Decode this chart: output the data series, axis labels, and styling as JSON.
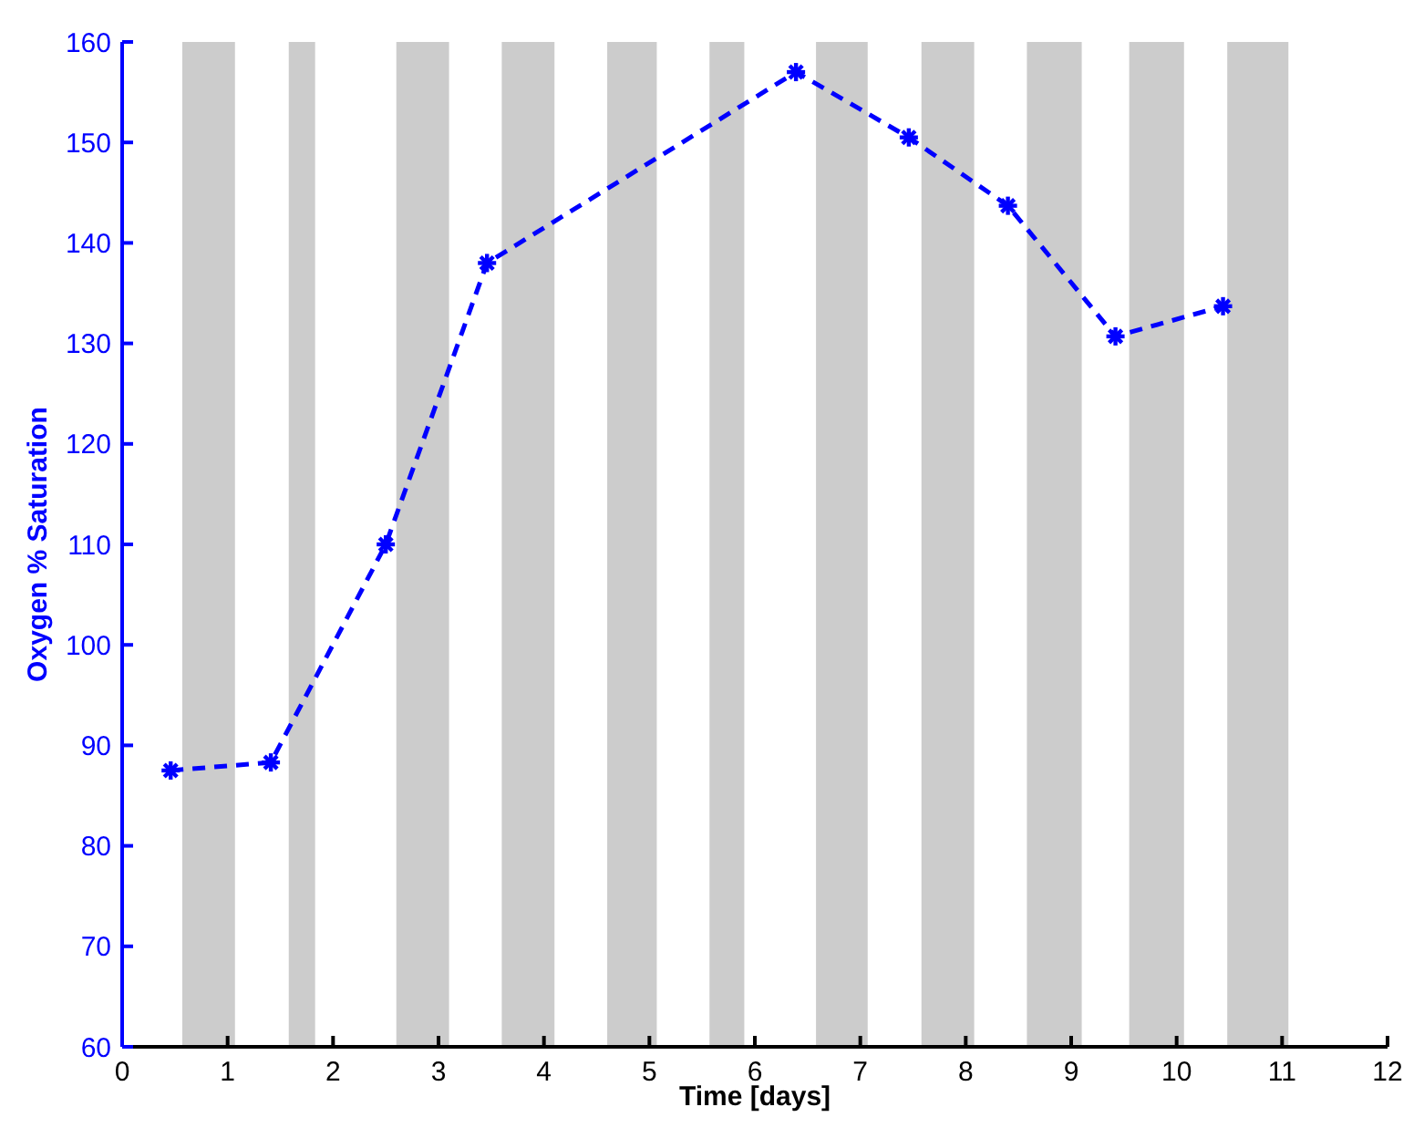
{
  "chart_data": {
    "type": "line",
    "xlabel": "Time [days]",
    "ylabel": "Oxygen % Saturation",
    "x": [
      0.46,
      1.41,
      2.5,
      3.46,
      6.39,
      7.46,
      8.4,
      9.42,
      10.44
    ],
    "series": [
      {
        "color": "#0000ff",
        "values": [
          87.5,
          88.3,
          110,
          138,
          157,
          150.5,
          143.7,
          130.7,
          133.7
        ]
      }
    ],
    "xlim": [
      0,
      12
    ],
    "xticks": [
      0,
      1,
      2,
      3,
      4,
      5,
      6,
      7,
      8,
      9,
      10,
      11,
      12
    ],
    "ylim": [
      60,
      160
    ],
    "yticks": [
      60,
      70,
      80,
      90,
      100,
      110,
      120,
      130,
      140,
      150,
      160
    ],
    "bands": [
      {
        "axis": "x",
        "from": 0.57,
        "to": 1.07,
        "color": "#cccccc"
      },
      {
        "axis": "x",
        "from": 1.58,
        "to": 1.83,
        "color": "#cccccc"
      },
      {
        "axis": "x",
        "from": 2.6,
        "to": 3.1,
        "color": "#cccccc"
      },
      {
        "axis": "x",
        "from": 3.6,
        "to": 4.1,
        "color": "#cccccc"
      },
      {
        "axis": "x",
        "from": 4.6,
        "to": 5.07,
        "color": "#cccccc"
      },
      {
        "axis": "x",
        "from": 5.57,
        "to": 5.9,
        "color": "#cccccc"
      },
      {
        "axis": "x",
        "from": 6.58,
        "to": 7.07,
        "color": "#cccccc"
      },
      {
        "axis": "x",
        "from": 7.58,
        "to": 8.08,
        "color": "#cccccc"
      },
      {
        "axis": "x",
        "from": 8.58,
        "to": 9.1,
        "color": "#cccccc"
      },
      {
        "axis": "x",
        "from": 9.55,
        "to": 10.07,
        "color": "#cccccc"
      },
      {
        "axis": "x",
        "from": 10.48,
        "to": 11.06,
        "color": "#cccccc"
      }
    ],
    "grid": false,
    "legend": false,
    "marker": "cross",
    "line_style": "dashed"
  }
}
